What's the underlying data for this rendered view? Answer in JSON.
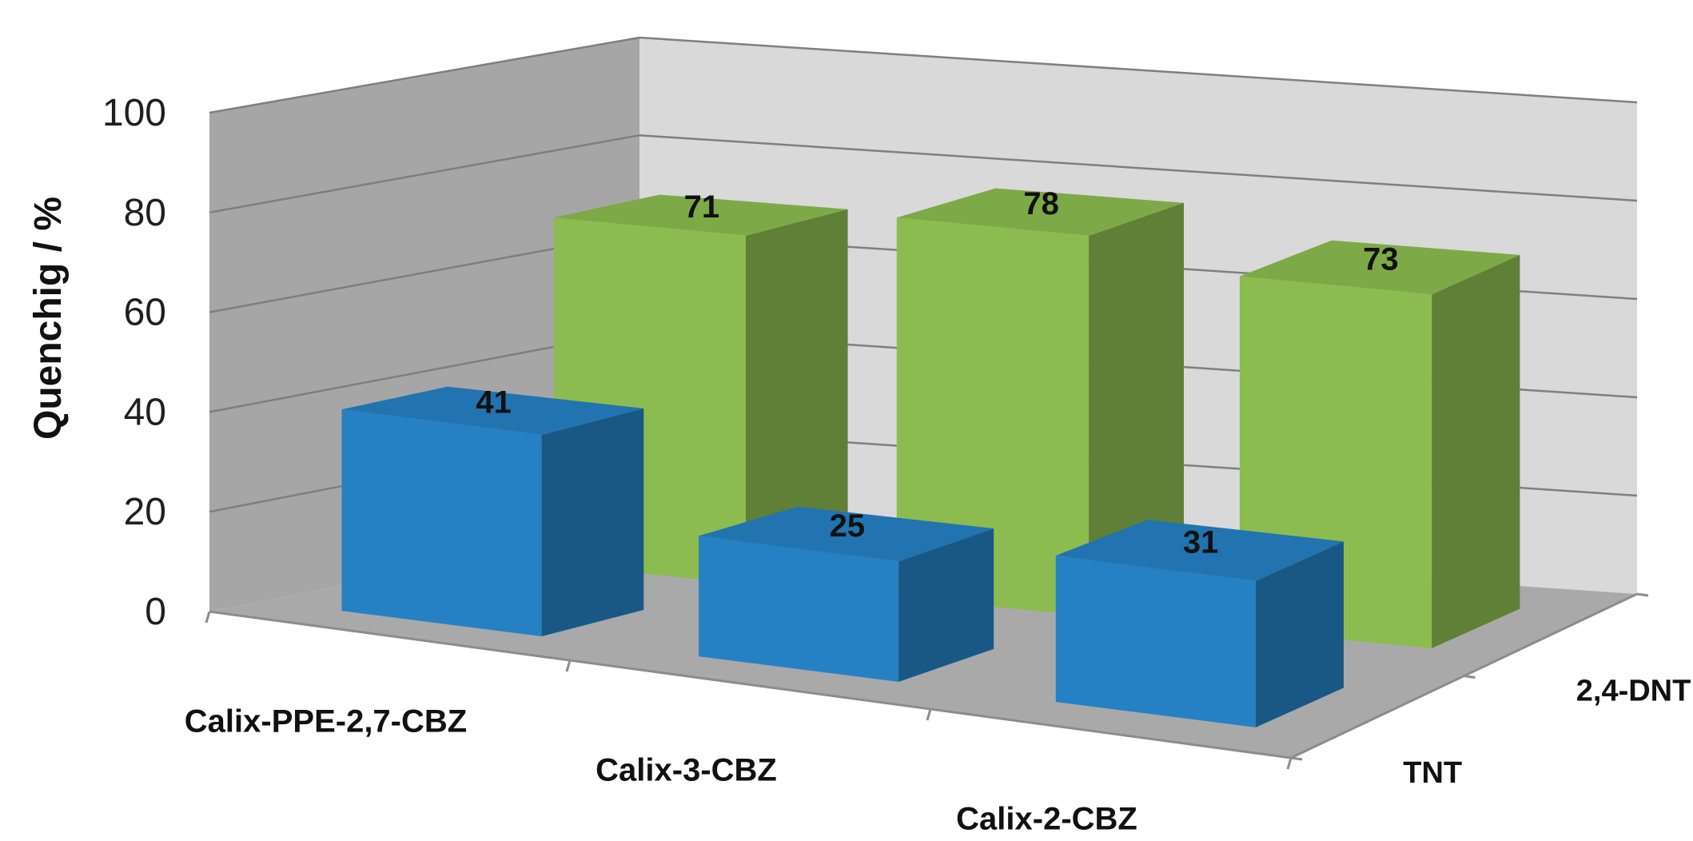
{
  "chart_data": {
    "type": "bar",
    "title": "",
    "ylabel": "Quenchig / %",
    "xlabel": "",
    "ylim": [
      0,
      100
    ],
    "yticks": [
      0,
      20,
      40,
      60,
      80,
      100
    ],
    "categories": [
      "Calix-PPE-2,7-CBZ",
      "Calix-3-CBZ",
      "Calix-2-CBZ"
    ],
    "series": [
      {
        "name": "TNT",
        "values": [
          41,
          25,
          31
        ],
        "color": "#2581c4"
      },
      {
        "name": "2,4-DNT",
        "values": [
          71,
          78,
          73
        ],
        "color": "#8cbc4f"
      }
    ],
    "grid": true,
    "three_d": true
  }
}
